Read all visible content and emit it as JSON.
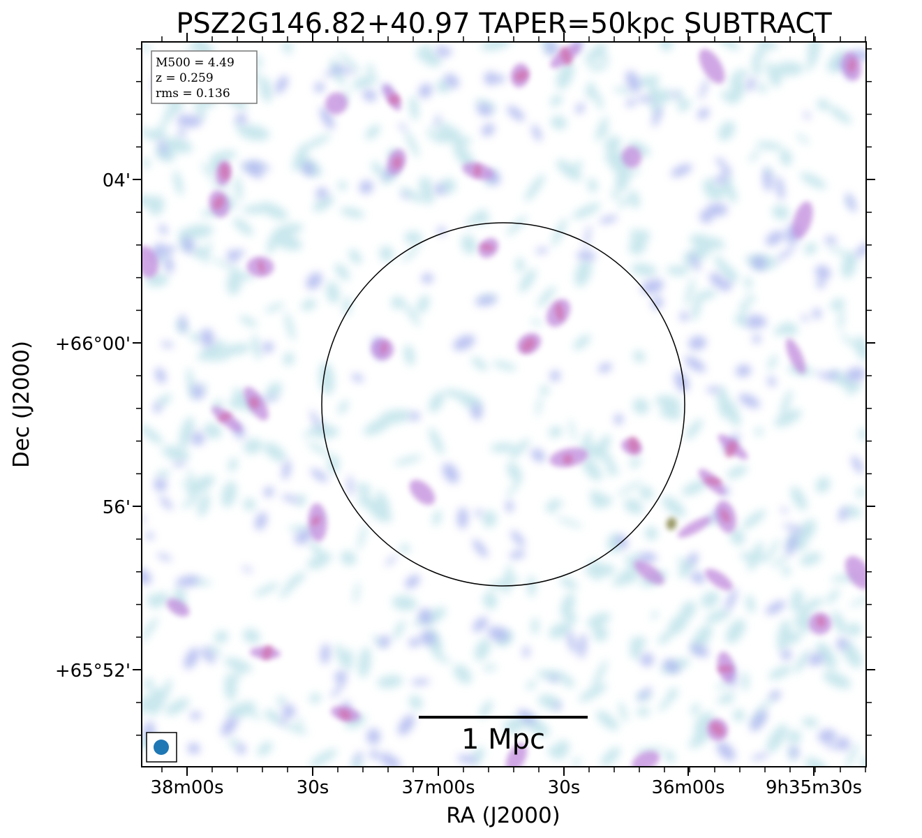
{
  "title": "PSZ2G146.82+40.97 TAPER=50kpc SUBTRACT",
  "xlabel": "RA (J2000)",
  "ylabel": "Dec (J2000)",
  "info": {
    "m500": "M500 = 4.49",
    "z": "z = 0.259",
    "rms": "rms = 0.136"
  },
  "scale_bar": {
    "label": "1 Mpc"
  },
  "x_ticks": [
    "38m00s",
    "30s",
    "37m00s",
    "30s",
    "36m00s",
    "9h35m30s"
  ],
  "y_ticks": [
    "04'",
    "+66°00'",
    "56'",
    "+65°52'"
  ],
  "colors": {
    "faint": "#bfe3ea",
    "low": "#aab4ee",
    "mid": "#c089dc",
    "high": "#cf6fae",
    "peak": "#7a7a3a",
    "beam": "#1f77b4"
  },
  "icons": {
    "beam": "beam-ellipse-icon"
  }
}
